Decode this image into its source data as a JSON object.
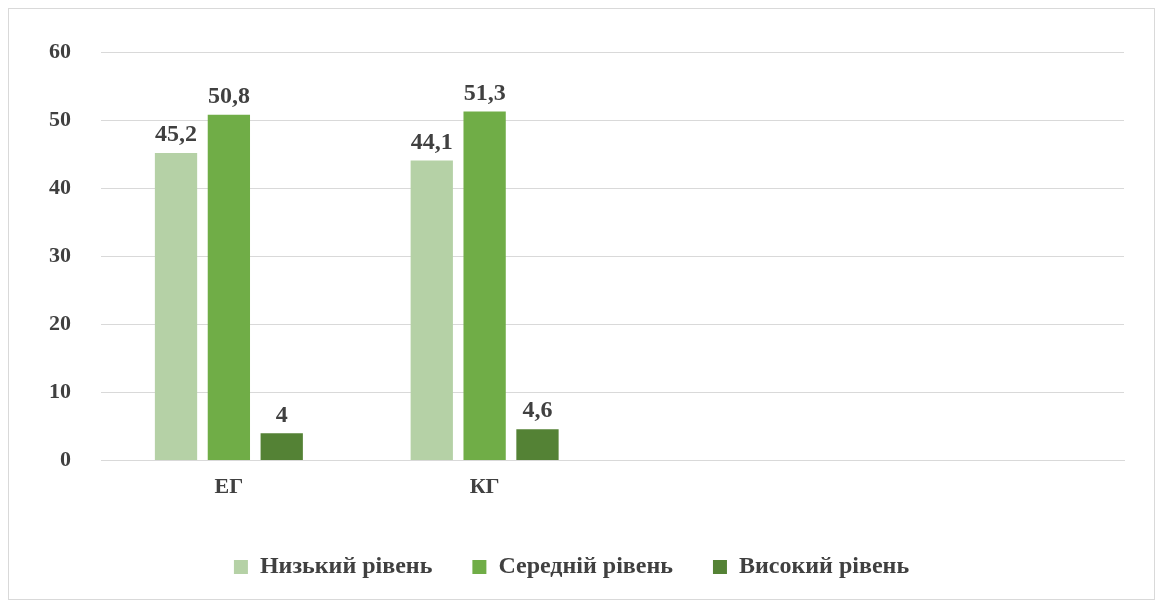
{
  "chart_data": {
    "type": "bar",
    "categories": [
      "ЕГ",
      "КГ",
      null,
      null
    ],
    "series": [
      {
        "name": "Низький рівень",
        "color": "#b5d1a6",
        "values": [
          45.2,
          44.1,
          null,
          null
        ],
        "value_labels": [
          "45,2",
          "44,1",
          null,
          null
        ]
      },
      {
        "name": "Середній рівень",
        "color": "#70ad47",
        "values": [
          50.8,
          51.3,
          null,
          null
        ],
        "value_labels": [
          "50,8",
          "51,3",
          null,
          null
        ]
      },
      {
        "name": "Високий рівень",
        "color": "#548235",
        "values": [
          4,
          4.6,
          null,
          null
        ],
        "value_labels": [
          "4",
          "4,6",
          null,
          null
        ]
      }
    ],
    "ylim": [
      0,
      60
    ],
    "yticks": [
      0,
      10,
      20,
      30,
      40,
      50,
      60
    ],
    "grid": "y",
    "legend": "bottom"
  }
}
